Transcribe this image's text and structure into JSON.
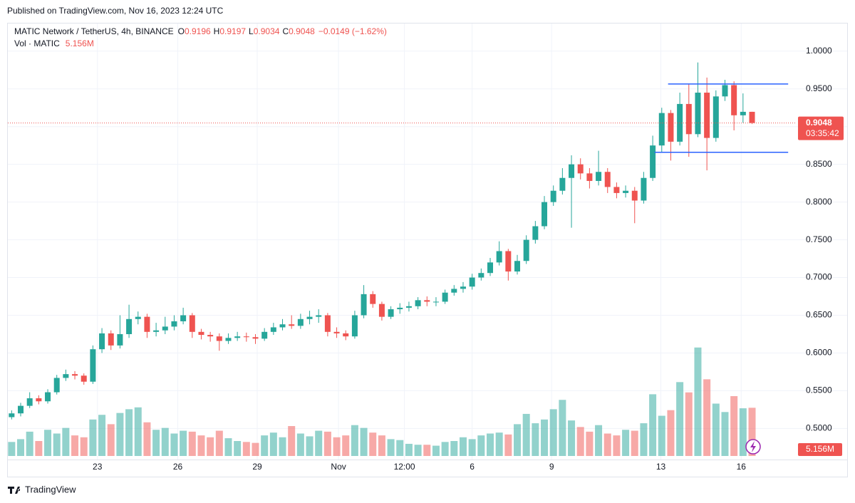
{
  "chart_data": {
    "type": "candlestick",
    "published": "Published on TradingView.com, Nov 16, 2023 12:24 UTC",
    "symbol": "MATIC Network / TetherUS, 4h, BINANCE",
    "ohlc_letters": [
      "O",
      "H",
      "L",
      "C"
    ],
    "change_label": "−0.0149 (−1.62%)",
    "volume_title": "Vol · MATIC",
    "volume_label": "5.156M",
    "countdown": "03:35:42",
    "brand": "TradingView",
    "up_color": "#26a69a",
    "down_color": "#ef5350",
    "level_color": "#2962ff",
    "grid": true,
    "ylim": [
      0.456,
      1.03
    ],
    "yticks": [
      {
        "value": 0.5,
        "label": "0.5000"
      },
      {
        "value": 0.55,
        "label": "0.5500"
      },
      {
        "value": 0.6,
        "label": "0.6000"
      },
      {
        "value": 0.65,
        "label": "0.6500"
      },
      {
        "value": 0.7,
        "label": "0.7000"
      },
      {
        "value": 0.75,
        "label": "0.7500"
      },
      {
        "value": 0.8,
        "label": "0.8000"
      },
      {
        "value": 0.85,
        "label": "0.8500"
      },
      {
        "value": 0.9,
        "label": "0.9000"
      },
      {
        "value": 0.95,
        "label": "0.9500"
      },
      {
        "value": 1.0,
        "label": "1.0000"
      }
    ],
    "xlim": [
      -0.5,
      86.3
    ],
    "xticks": [
      {
        "value": 9.5,
        "label": "23"
      },
      {
        "value": 18.4,
        "label": "26"
      },
      {
        "value": 27.2,
        "label": "29"
      },
      {
        "value": 36.2,
        "label": "Nov"
      },
      {
        "value": 43.5,
        "label": "12:00"
      },
      {
        "value": 51.0,
        "label": "6"
      },
      {
        "value": 59.8,
        "label": "9"
      },
      {
        "value": 71.9,
        "label": "13"
      },
      {
        "value": 80.8,
        "label": "16"
      }
    ],
    "vol_ylim": [
      0,
      16
    ],
    "levels": [
      {
        "value": 0.9565,
        "from": 72.7,
        "to": 86.0
      },
      {
        "value": 0.866,
        "from": 71.2,
        "to": 86.0
      }
    ],
    "open": [
      0.515,
      0.52,
      0.53,
      0.54,
      0.536,
      0.548,
      0.567,
      0.572,
      0.57,
      0.562,
      0.605,
      0.626,
      0.61,
      0.625,
      0.645,
      0.648,
      0.628,
      0.63,
      0.635,
      0.642,
      0.65,
      0.628,
      0.624,
      0.622,
      0.616,
      0.62,
      0.622,
      0.621,
      0.619,
      0.628,
      0.634,
      0.638,
      0.636,
      0.645,
      0.648,
      0.65,
      0.628,
      0.626,
      0.622,
      0.65,
      0.678,
      0.665,
      0.648,
      0.658,
      0.66,
      0.662,
      0.67,
      0.668,
      0.668,
      0.68,
      0.685,
      0.688,
      0.7,
      0.706,
      0.72,
      0.735,
      0.708,
      0.722,
      0.75,
      0.768,
      0.8,
      0.815,
      0.832,
      0.85,
      0.838,
      0.828,
      0.84,
      0.82,
      0.812,
      0.815,
      0.802,
      0.832,
      0.875,
      0.918,
      0.88,
      0.93,
      0.89,
      0.945,
      0.885,
      0.94,
      0.955,
      0.915,
      0.9196
    ],
    "high": [
      0.524,
      0.534,
      0.548,
      0.544,
      0.552,
      0.571,
      0.578,
      0.576,
      0.573,
      0.61,
      0.633,
      0.63,
      0.65,
      0.664,
      0.655,
      0.652,
      0.64,
      0.648,
      0.65,
      0.66,
      0.653,
      0.632,
      0.628,
      0.626,
      0.626,
      0.628,
      0.627,
      0.625,
      0.633,
      0.64,
      0.645,
      0.65,
      0.652,
      0.656,
      0.658,
      0.653,
      0.634,
      0.63,
      0.656,
      0.69,
      0.682,
      0.668,
      0.662,
      0.666,
      0.668,
      0.674,
      0.675,
      0.674,
      0.684,
      0.69,
      0.694,
      0.705,
      0.712,
      0.726,
      0.748,
      0.738,
      0.73,
      0.756,
      0.775,
      0.808,
      0.822,
      0.845,
      0.862,
      0.858,
      0.845,
      0.868,
      0.845,
      0.826,
      0.822,
      0.82,
      0.84,
      0.888,
      0.925,
      0.922,
      0.945,
      0.956,
      0.985,
      0.965,
      0.948,
      0.962,
      0.96,
      0.944,
      0.9197
    ],
    "low": [
      0.512,
      0.516,
      0.527,
      0.532,
      0.533,
      0.545,
      0.563,
      0.565,
      0.558,
      0.559,
      0.6,
      0.604,
      0.606,
      0.62,
      0.638,
      0.62,
      0.622,
      0.625,
      0.63,
      0.638,
      0.62,
      0.618,
      0.615,
      0.603,
      0.612,
      0.616,
      0.615,
      0.612,
      0.616,
      0.624,
      0.63,
      0.632,
      0.632,
      0.638,
      0.64,
      0.622,
      0.62,
      0.617,
      0.619,
      0.646,
      0.66,
      0.643,
      0.645,
      0.652,
      0.655,
      0.658,
      0.662,
      0.662,
      0.665,
      0.676,
      0.68,
      0.684,
      0.696,
      0.702,
      0.716,
      0.696,
      0.704,
      0.718,
      0.745,
      0.764,
      0.795,
      0.81,
      0.766,
      0.83,
      0.818,
      0.822,
      0.812,
      0.805,
      0.806,
      0.772,
      0.798,
      0.828,
      0.866,
      0.855,
      0.875,
      0.86,
      0.886,
      0.842,
      0.88,
      0.934,
      0.895,
      0.905,
      0.9034
    ],
    "close": [
      0.52,
      0.53,
      0.54,
      0.536,
      0.548,
      0.567,
      0.572,
      0.57,
      0.562,
      0.605,
      0.626,
      0.61,
      0.625,
      0.645,
      0.648,
      0.628,
      0.63,
      0.635,
      0.642,
      0.65,
      0.628,
      0.624,
      0.622,
      0.616,
      0.62,
      0.622,
      0.621,
      0.619,
      0.628,
      0.634,
      0.638,
      0.636,
      0.645,
      0.648,
      0.65,
      0.628,
      0.626,
      0.622,
      0.65,
      0.678,
      0.665,
      0.648,
      0.658,
      0.66,
      0.662,
      0.67,
      0.668,
      0.668,
      0.68,
      0.685,
      0.688,
      0.7,
      0.706,
      0.72,
      0.735,
      0.708,
      0.722,
      0.75,
      0.768,
      0.8,
      0.815,
      0.832,
      0.85,
      0.838,
      0.828,
      0.84,
      0.82,
      0.812,
      0.815,
      0.802,
      0.832,
      0.875,
      0.918,
      0.88,
      0.93,
      0.89,
      0.945,
      0.885,
      0.94,
      0.955,
      0.915,
      0.9196,
      0.9048
    ],
    "volume": [
      1.5,
      1.8,
      2.6,
      1.6,
      2.8,
      2.4,
      3.0,
      2.2,
      2.0,
      3.9,
      4.4,
      3.4,
      4.6,
      5.0,
      5.2,
      3.6,
      2.8,
      3.0,
      2.4,
      2.7,
      2.6,
      2.2,
      2.0,
      2.7,
      1.9,
      1.6,
      1.5,
      1.4,
      2.2,
      2.5,
      2.0,
      3.2,
      2.4,
      2.1,
      2.7,
      2.6,
      2.0,
      2.2,
      3.3,
      3.0,
      2.5,
      2.2,
      1.8,
      1.7,
      1.3,
      1.2,
      1.2,
      1.1,
      1.5,
      1.6,
      2.0,
      1.8,
      2.2,
      2.4,
      2.5,
      2.3,
      3.4,
      4.5,
      3.5,
      3.9,
      5.0,
      6.0,
      3.8,
      3.1,
      2.6,
      3.3,
      2.4,
      2.2,
      2.8,
      2.7,
      3.5,
      6.6,
      4.3,
      4.9,
      7.9,
      6.8,
      11.6,
      8.2,
      5.6,
      4.7,
      6.4,
      5.1,
      5.156
    ]
  }
}
